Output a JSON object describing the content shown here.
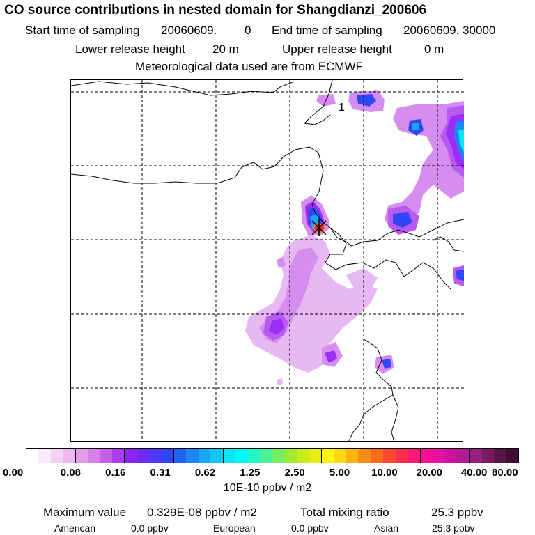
{
  "title": "CO  source contributions in nested domain for Shangdianzi_200606",
  "sampling": {
    "start_label": "Start time of sampling",
    "start_value": "20060609.",
    "start_time": "0",
    "end_label": "End time of sampling",
    "end_value": "20060609. 30000"
  },
  "release": {
    "lower_label": "Lower release height",
    "lower_value": "20 m",
    "upper_label": "Upper release height",
    "upper_value": "0 m"
  },
  "met_note": "Meteorological data used are from ECMWF",
  "colorbar": {
    "colors": [
      "#ffffff",
      "#fbe8fb",
      "#f6d1f6",
      "#f0b8f0",
      "#e69ce9",
      "#d97fe6",
      "#c35fe8",
      "#a93ef0",
      "#8f24f5",
      "#6d2bf2",
      "#4b38f2",
      "#2f46f5",
      "#1e64f5",
      "#1c86f3",
      "#18a8f3",
      "#12c8f3",
      "#0ce6f2",
      "#00fafa",
      "#22f6c8",
      "#4cf098",
      "#78ec66",
      "#a0ea34",
      "#c8ec1a",
      "#e6ee14",
      "#fff414",
      "#ffd814",
      "#ffb414",
      "#ff8c14",
      "#ff6a1c",
      "#ff4a2c",
      "#ff2c4c",
      "#ff1a78",
      "#f81098",
      "#e810a4",
      "#d0109e",
      "#b41a96",
      "#96207c",
      "#781c62",
      "#5a1448",
      "#400c34"
    ],
    "ticks": [
      "0.00",
      "0.08",
      "0.16",
      "0.31",
      "0.62",
      "1.25",
      "2.50",
      "5.00",
      "10.00",
      "20.00",
      "40.00",
      "80.00"
    ],
    "unit": "10E-10 ppbv / m2"
  },
  "summary": {
    "max_label": "Maximum value",
    "max_value": "0.329E-08 ppbv / m2",
    "total_label": "Total mixing ratio",
    "total_value": "25.3 ppbv"
  },
  "regions": [
    {
      "name": "American",
      "value": "0.0 ppbv"
    },
    {
      "name": "European",
      "value": "0.0 ppbv"
    },
    {
      "name": "Asian",
      "value": "25.3 ppbv"
    }
  ],
  "map": {
    "contour_label": "1",
    "colors": {
      "light_violet": "#e7b8f2",
      "mid_violet": "#d58ef0",
      "violet": "#b85af0",
      "purple": "#9a2ef5",
      "blue": "#2f46f5",
      "light_blue": "#18a8f3",
      "cyan": "#00fafa",
      "orange": "#ff8c14",
      "red": "#ff2020"
    }
  }
}
